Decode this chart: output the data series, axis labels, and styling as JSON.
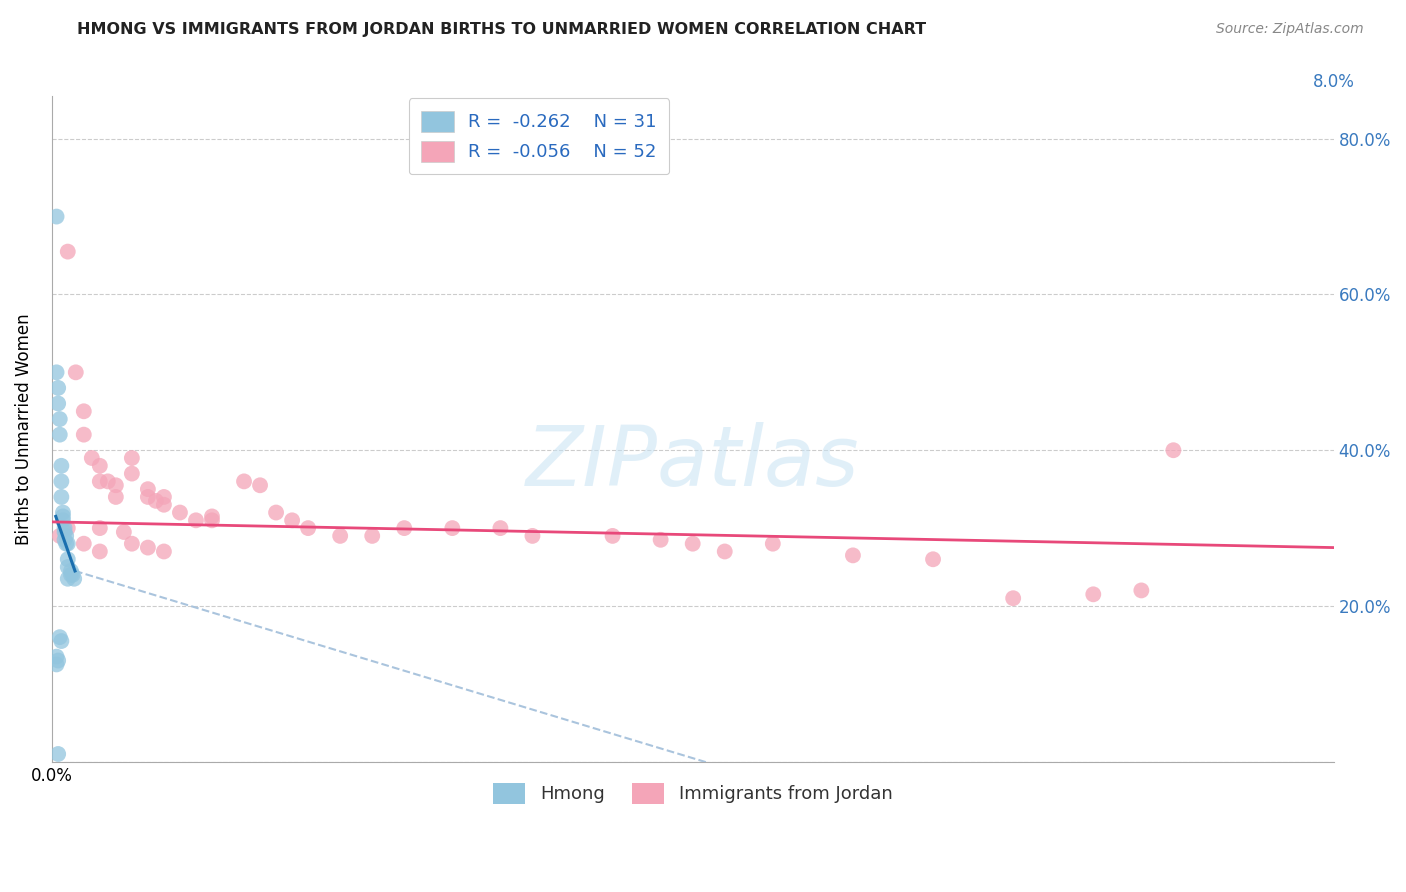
{
  "title": "HMONG VS IMMIGRANTS FROM JORDAN BIRTHS TO UNMARRIED WOMEN CORRELATION CHART",
  "source": "Source: ZipAtlas.com",
  "ylabel": "Births to Unmarried Women",
  "legend_label1": "Hmong",
  "legend_label2": "Immigrants from Jordan",
  "color_blue": "#92c5de",
  "color_pink": "#f4a5b8",
  "color_blue_line": "#1a6faf",
  "color_pink_line": "#e8497a",
  "color_dashed": "#aac4dd",
  "background": "#ffffff",
  "grid_color": "#cccccc",
  "xlim": [
    0.0,
    0.08
  ],
  "ylim": [
    0.0,
    0.855
  ],
  "yticks": [
    0.0,
    0.2,
    0.4,
    0.6,
    0.8
  ],
  "right_ytick_labels": [
    "",
    "20.0%",
    "40.0%",
    "60.0%",
    "80.0%"
  ],
  "hmong_x": [
    0.0003,
    0.0003,
    0.0004,
    0.0004,
    0.0005,
    0.0005,
    0.0006,
    0.0006,
    0.0006,
    0.0007,
    0.0007,
    0.0007,
    0.0008,
    0.0008,
    0.0008,
    0.0009,
    0.0009,
    0.001,
    0.001,
    0.001,
    0.001,
    0.0012,
    0.0012,
    0.0013,
    0.0014,
    0.0005,
    0.0006,
    0.0003,
    0.0003,
    0.0004,
    0.0004
  ],
  "hmong_y": [
    0.7,
    0.5,
    0.48,
    0.46,
    0.44,
    0.42,
    0.38,
    0.36,
    0.34,
    0.32,
    0.315,
    0.31,
    0.3,
    0.295,
    0.285,
    0.29,
    0.28,
    0.28,
    0.26,
    0.25,
    0.235,
    0.245,
    0.24,
    0.24,
    0.235,
    0.16,
    0.155,
    0.135,
    0.125,
    0.13,
    0.01
  ],
  "jordan_x": [
    0.001,
    0.0015,
    0.002,
    0.002,
    0.0025,
    0.003,
    0.003,
    0.0035,
    0.004,
    0.004,
    0.005,
    0.005,
    0.006,
    0.006,
    0.0065,
    0.007,
    0.007,
    0.008,
    0.009,
    0.01,
    0.01,
    0.012,
    0.013,
    0.014,
    0.015,
    0.016,
    0.018,
    0.02,
    0.022,
    0.025,
    0.028,
    0.03,
    0.035,
    0.038,
    0.04,
    0.042,
    0.045,
    0.05,
    0.055,
    0.06,
    0.065,
    0.068,
    0.07,
    0.001,
    0.0005,
    0.002,
    0.003,
    0.003,
    0.0045,
    0.005,
    0.006,
    0.007
  ],
  "jordan_y": [
    0.655,
    0.5,
    0.45,
    0.42,
    0.39,
    0.38,
    0.36,
    0.36,
    0.355,
    0.34,
    0.39,
    0.37,
    0.35,
    0.34,
    0.335,
    0.34,
    0.33,
    0.32,
    0.31,
    0.315,
    0.31,
    0.36,
    0.355,
    0.32,
    0.31,
    0.3,
    0.29,
    0.29,
    0.3,
    0.3,
    0.3,
    0.29,
    0.29,
    0.285,
    0.28,
    0.27,
    0.28,
    0.265,
    0.26,
    0.21,
    0.215,
    0.22,
    0.4,
    0.3,
    0.29,
    0.28,
    0.27,
    0.3,
    0.295,
    0.28,
    0.275,
    0.27
  ],
  "blue_line_x": [
    0.00025,
    0.00145
  ],
  "blue_line_y": [
    0.315,
    0.245
  ],
  "dashed_line_x": [
    0.00145,
    0.06
  ],
  "dashed_line_y": [
    0.245,
    -0.12
  ],
  "pink_line_x": [
    0.0,
    0.08
  ],
  "pink_line_y": [
    0.308,
    0.275
  ]
}
